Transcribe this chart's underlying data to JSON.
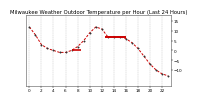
{
  "title": "Milwaukee Weather Outdoor Temperature per Hour (Last 24 Hours)",
  "hours": [
    0,
    1,
    2,
    3,
    4,
    5,
    6,
    7,
    8,
    9,
    10,
    11,
    12,
    13,
    14,
    15,
    16,
    17,
    18,
    19,
    20,
    21,
    22,
    23
  ],
  "temps": [
    12,
    8,
    3,
    1,
    0,
    -1,
    -1,
    0,
    2,
    5,
    9,
    12,
    11,
    7,
    7,
    7,
    6,
    4,
    1,
    -3,
    -7,
    -10,
    -12,
    -13
  ],
  "line_color": "#cc0000",
  "marker_color": "#333333",
  "bg_color": "#ffffff",
  "grid_color": "#999999",
  "ylim_min": -18,
  "ylim_max": 18,
  "yticks": [
    -10,
    -5,
    0,
    5,
    10,
    15
  ],
  "title_fontsize": 3.8,
  "tick_fontsize": 3.0,
  "linewidth": 0.7,
  "markersize": 1.0
}
